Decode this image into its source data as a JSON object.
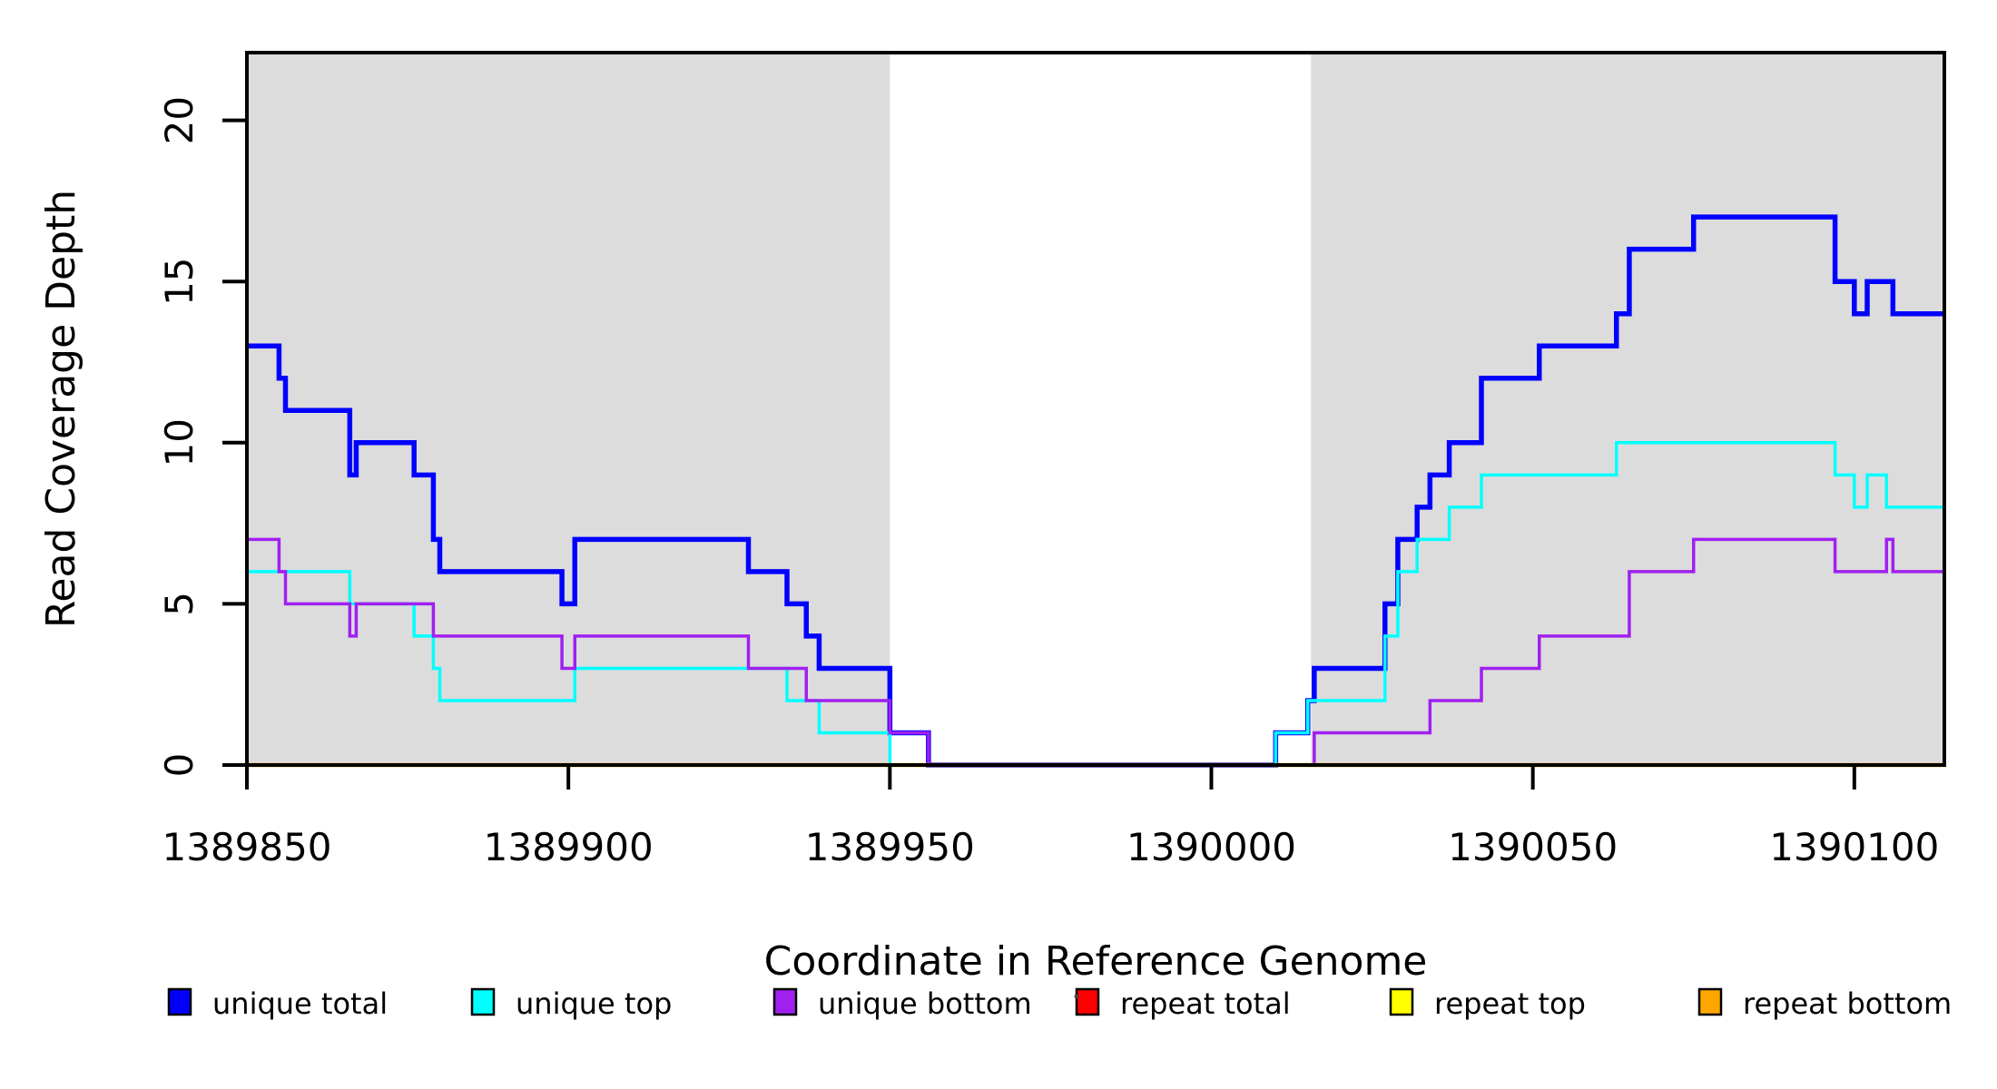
{
  "figure": {
    "x_axis": {
      "title": "Coordinate in Reference Genome",
      "tick_labels": [
        "1389850",
        "1389900",
        "1389950",
        "1390000",
        "1390050",
        "1390100"
      ],
      "tick_values": [
        1389850,
        1389900,
        1389950,
        1390000,
        1390050,
        1390100
      ]
    },
    "y_axis": {
      "title": "Read Coverage Depth",
      "tick_labels": [
        "0",
        "5",
        "10",
        "15",
        "20"
      ],
      "tick_values": [
        0,
        5,
        10,
        15,
        20
      ]
    },
    "legend": [
      {
        "label": "unique total",
        "color": "#0000ff"
      },
      {
        "label": "unique top",
        "color": "#00ffff"
      },
      {
        "label": "unique bottom",
        "color": "#a020f0"
      },
      {
        "label": "repeat total",
        "color": "#ff0000"
      },
      {
        "label": "repeat top",
        "color": "#ffff00"
      },
      {
        "label": "repeat bottom",
        "color": "#ffa500"
      }
    ],
    "shaded_regions": {
      "color": "#dcdcdc",
      "regions": [
        [
          1389850,
          1389950
        ],
        [
          1390015.5,
          1390114
        ]
      ]
    }
  },
  "chart_data": {
    "type": "line",
    "step": true,
    "title": "",
    "xlabel": "Coordinate in Reference Genome",
    "ylabel": "Read Coverage Depth",
    "xlim": [
      1389850,
      1390114
    ],
    "ylim": [
      0,
      22.1
    ],
    "grid": false,
    "legend_position": "bottom",
    "series": [
      {
        "name": "unique total",
        "color": "#0000ff",
        "width": 5.5,
        "points": [
          [
            1389850,
            13
          ],
          [
            1389855,
            12
          ],
          [
            1389856,
            11
          ],
          [
            1389866,
            9
          ],
          [
            1389867,
            10
          ],
          [
            1389876,
            9
          ],
          [
            1389879,
            7
          ],
          [
            1389880,
            6
          ],
          [
            1389899,
            5
          ],
          [
            1389901,
            7
          ],
          [
            1389928,
            6
          ],
          [
            1389934,
            5
          ],
          [
            1389937,
            4
          ],
          [
            1389939,
            3
          ],
          [
            1389950,
            1
          ],
          [
            1389956,
            0
          ],
          [
            1390010,
            1
          ],
          [
            1390015,
            2
          ],
          [
            1390016,
            3
          ],
          [
            1390027,
            5
          ],
          [
            1390029,
            7
          ],
          [
            1390032,
            8
          ],
          [
            1390034,
            9
          ],
          [
            1390037,
            10
          ],
          [
            1390042,
            12
          ],
          [
            1390051,
            13
          ],
          [
            1390063,
            14
          ],
          [
            1390065,
            16
          ],
          [
            1390075,
            17
          ],
          [
            1390097,
            15
          ],
          [
            1390100,
            14
          ],
          [
            1390102,
            15
          ],
          [
            1390106,
            14
          ]
        ]
      },
      {
        "name": "unique top",
        "color": "#00ffff",
        "width": 3.5,
        "points": [
          [
            1389850,
            6
          ],
          [
            1389866,
            5
          ],
          [
            1389876,
            4
          ],
          [
            1389879,
            3
          ],
          [
            1389880,
            2
          ],
          [
            1389901,
            3
          ],
          [
            1389934,
            2
          ],
          [
            1389939,
            1
          ],
          [
            1389950,
            0
          ],
          [
            1390010,
            1
          ],
          [
            1390015,
            2
          ],
          [
            1390027,
            4
          ],
          [
            1390029,
            6
          ],
          [
            1390032,
            7
          ],
          [
            1390037,
            8
          ],
          [
            1390042,
            9
          ],
          [
            1390063,
            10
          ],
          [
            1390097,
            9
          ],
          [
            1390100,
            8
          ],
          [
            1390102,
            9
          ],
          [
            1390105,
            8
          ]
        ]
      },
      {
        "name": "unique bottom",
        "color": "#a020f0",
        "width": 3.5,
        "points": [
          [
            1389850,
            7
          ],
          [
            1389855,
            6
          ],
          [
            1389856,
            5
          ],
          [
            1389866,
            4
          ],
          [
            1389867,
            5
          ],
          [
            1389879,
            4
          ],
          [
            1389899,
            3
          ],
          [
            1389901,
            4
          ],
          [
            1389928,
            3
          ],
          [
            1389937,
            2
          ],
          [
            1389950,
            1
          ],
          [
            1389956,
            0
          ],
          [
            1390016,
            1
          ],
          [
            1390034,
            2
          ],
          [
            1390042,
            3
          ],
          [
            1390051,
            4
          ],
          [
            1390065,
            6
          ],
          [
            1390075,
            7
          ],
          [
            1390097,
            6
          ],
          [
            1390105,
            7
          ],
          [
            1390106,
            6
          ]
        ]
      },
      {
        "name": "repeat total",
        "color": "#ff0000",
        "width": 3,
        "points": [
          [
            1389850,
            0
          ]
        ]
      },
      {
        "name": "repeat top",
        "color": "#ffff00",
        "width": 3,
        "points": [
          [
            1389850,
            0
          ]
        ]
      },
      {
        "name": "repeat bottom",
        "color": "#ffa500",
        "width": 4.5,
        "points": [
          [
            1389850,
            0
          ]
        ]
      }
    ]
  }
}
